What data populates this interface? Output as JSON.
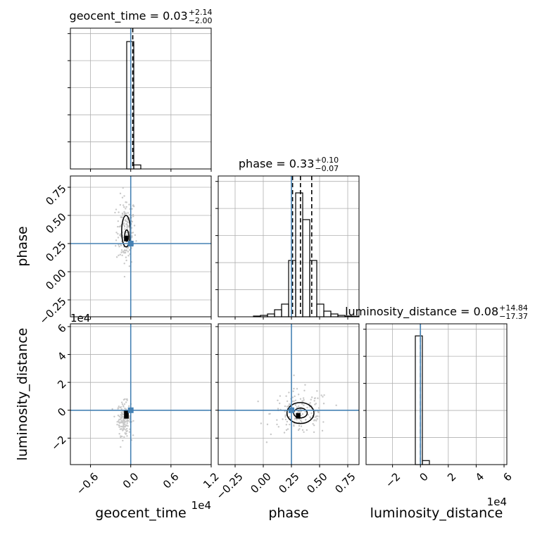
{
  "chart_data": {
    "type": "corner",
    "parameters": [
      "geocent_time",
      "phase",
      "luminosity_distance"
    ],
    "axis_labels": {
      "geocent_time": "geocent_time",
      "phase": "phase",
      "luminosity_distance": "luminosity_distance"
    },
    "titles": [
      {
        "param": "geocent_time",
        "prefix": "geocent_time = 0.03",
        "plus": "+2.14",
        "minus": "−2.00"
      },
      {
        "param": "phase",
        "prefix": "phase = 0.33",
        "plus": "+0.10",
        "minus": "−0.07"
      },
      {
        "param": "luminosity_distance",
        "prefix": "luminosity_distance = 0.08",
        "plus": "+14.84",
        "minus": "−17.37"
      }
    ],
    "ranges": {
      "geocent_time": [
        -0.9,
        1.2
      ],
      "phase": [
        -0.4,
        0.85
      ],
      "luminosity_distance": [
        -3.9,
        6.2
      ]
    },
    "ticks": {
      "geocent_time": {
        "values": [
          -0.6,
          0.0,
          0.6,
          1.2
        ],
        "labels": [
          "−0.6",
          "0.0",
          "0.6",
          "1.2"
        ]
      },
      "phase": {
        "values": [
          -0.25,
          0.0,
          0.25,
          0.5,
          0.75
        ],
        "labels": [
          "−0.25",
          "0.00",
          "0.25",
          "0.50",
          "0.75"
        ]
      },
      "luminosity_distance": {
        "values": [
          -2,
          0,
          2,
          4,
          6
        ],
        "labels": [
          "−2",
          "0",
          "2",
          "4",
          "6"
        ]
      }
    },
    "offset_texts": {
      "geocent_time": "1e4",
      "luminosity_distance": "1e4"
    },
    "truths": {
      "geocent_time": 0.0,
      "phase": 0.25,
      "luminosity_distance": 0.0
    },
    "truth_color": "#4682b4",
    "line_color": "#000000",
    "grid": true,
    "histograms": {
      "geocent_time": {
        "edges": [
          -0.9,
          -0.795,
          -0.69,
          -0.585,
          -0.48,
          -0.375,
          -0.27,
          -0.165,
          -0.06,
          0.045,
          0.15,
          0.255,
          0.36,
          0.465,
          0.57,
          0.675,
          0.78,
          0.885,
          0.99,
          1.095,
          1.2
        ],
        "counts": [
          0,
          0,
          0,
          0,
          0,
          0,
          0,
          0,
          0.95,
          0.03,
          0,
          0,
          0,
          0,
          0,
          0,
          0,
          0,
          0,
          0
        ],
        "ymax": 1.05,
        "quantiles": [
          0.03
        ]
      },
      "phase": {
        "edges": [
          -0.4,
          -0.3375,
          -0.275,
          -0.2125,
          -0.15,
          -0.0875,
          -0.025,
          0.0375,
          0.1,
          0.1625,
          0.225,
          0.2875,
          0.35,
          0.4125,
          0.475,
          0.5375,
          0.6,
          0.6625,
          0.725,
          0.7875,
          0.85
        ],
        "counts": [
          0,
          0,
          0,
          0,
          0,
          0.005,
          0.01,
          0.02,
          0.05,
          0.09,
          0.4,
          0.88,
          0.69,
          0.4,
          0.09,
          0.04,
          0.02,
          0.01,
          0.005,
          0.004
        ],
        "ymax": 1.0,
        "quantiles": [
          0.26,
          0.33,
          0.43
        ]
      },
      "luminosity_distance": {
        "edges": [
          -3.9,
          -3.395,
          -2.89,
          -2.385,
          -1.88,
          -1.375,
          -0.87,
          -0.365,
          0.14,
          0.645,
          1.15,
          1.655,
          2.16,
          2.665,
          3.17,
          3.675,
          4.18,
          4.685,
          5.19,
          5.695,
          6.2
        ],
        "counts": [
          0,
          0,
          0,
          0,
          0,
          0,
          0,
          0.96,
          0.03,
          0,
          0,
          0,
          0,
          0,
          0,
          0,
          0,
          0,
          0,
          0
        ],
        "ymax": 1.05,
        "quantiles": [
          0.0
        ]
      }
    },
    "joint": {
      "phase_vs_geocent_time": {
        "x": "geocent_time",
        "y": "phase",
        "contours": [
          {
            "cx": -0.07,
            "cy": 0.36,
            "rx": 0.065,
            "ry": 0.14
          },
          {
            "cx": -0.06,
            "cy": 0.32,
            "rx": 0.03,
            "ry": 0.05
          }
        ],
        "core": {
          "x": -0.1,
          "y": 0.27,
          "w": 0.06,
          "h": 0.05
        }
      },
      "luminosity_distance_vs_geocent_time": {
        "x": "geocent_time",
        "y": "luminosity_distance",
        "contours": [],
        "core": {
          "x": -0.1,
          "y": -0.6,
          "w": 0.07,
          "h": 0.6
        }
      },
      "luminosity_distance_vs_phase": {
        "x": "phase",
        "y": "luminosity_distance",
        "contours": [
          {
            "cx": 0.33,
            "cy": -0.2,
            "rx": 0.12,
            "ry": 0.75
          },
          {
            "cx": 0.33,
            "cy": -0.2,
            "rx": 0.06,
            "ry": 0.35
          }
        ],
        "core": {
          "x": 0.29,
          "y": -0.6,
          "w": 0.04,
          "h": 0.4
        }
      }
    }
  }
}
